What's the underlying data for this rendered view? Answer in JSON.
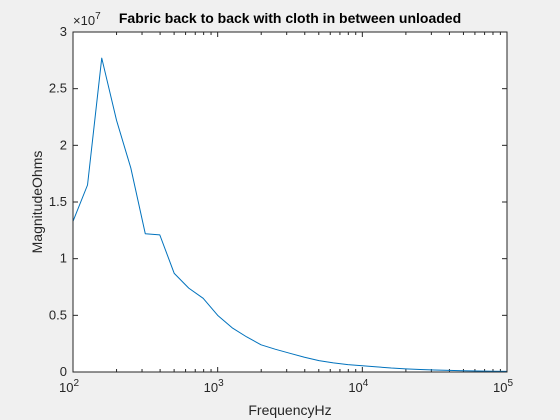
{
  "chart_data": {
    "type": "line",
    "title": "Fabric back to back with cloth in between unloaded",
    "xlabel": "FrequencyHz",
    "ylabel": "MagnitudeOhms",
    "xscale": "log",
    "xlim": [
      100,
      100000
    ],
    "ylim": [
      0,
      3
    ],
    "y_multiplier": "×10",
    "y_multiplier_exponent": "7",
    "xticks": [
      {
        "base": "10",
        "exp": "2",
        "value": 100
      },
      {
        "base": "10",
        "exp": "3",
        "value": 1000
      },
      {
        "base": "10",
        "exp": "4",
        "value": 10000
      },
      {
        "base": "10",
        "exp": "5",
        "value": 100000
      }
    ],
    "yticks": [
      {
        "label": "0",
        "value": 0
      },
      {
        "label": "0.5",
        "value": 0.5
      },
      {
        "label": "1",
        "value": 1
      },
      {
        "label": "1.5",
        "value": 1.5
      },
      {
        "label": "2",
        "value": 2
      },
      {
        "label": "2.5",
        "value": 2.5
      },
      {
        "label": "3",
        "value": 3
      }
    ],
    "grid": false,
    "series": [
      {
        "color": "#0072BD",
        "x": [
          100,
          126,
          158,
          200,
          251,
          316,
          398,
          501,
          631,
          794,
          1000,
          1259,
          1585,
          1995,
          2512,
          3162,
          3981,
          5012,
          6310,
          7943,
          10000,
          12589,
          15849,
          19953,
          25119,
          31623,
          39811,
          50119,
          63096,
          79433,
          100000
        ],
        "y": [
          1.33,
          1.65,
          2.77,
          2.22,
          1.8,
          1.22,
          1.21,
          0.87,
          0.74,
          0.65,
          0.5,
          0.39,
          0.31,
          0.24,
          0.2,
          0.165,
          0.13,
          0.1,
          0.08,
          0.065,
          0.055,
          0.045,
          0.035,
          0.028,
          0.022,
          0.018,
          0.014,
          0.011,
          0.009,
          0.007,
          0.005
        ]
      }
    ]
  }
}
